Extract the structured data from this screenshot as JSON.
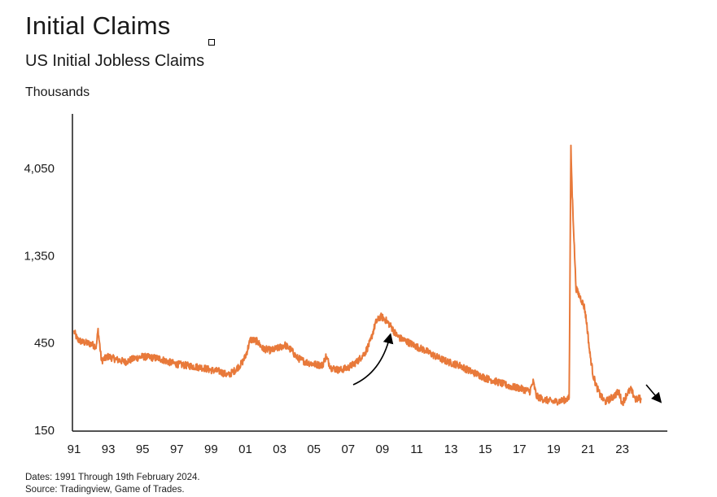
{
  "header": {
    "title": "Initial Claims",
    "subtitle": "US Initial Jobless Claims",
    "unit_label": "Thousands"
  },
  "footer": {
    "dates_note": "Dates: 1991 Through 19th February 2024.",
    "source_note": "Source: Tradingview, Game of Trades."
  },
  "colors": {
    "series": "#E8793A",
    "axis": "#1a1a1a",
    "arrows": "#000000"
  },
  "chart_data": {
    "type": "line",
    "title": "Initial Claims",
    "subtitle": "US Initial Jobless Claims",
    "ylabel": "Thousands",
    "xlabel": "",
    "y_scale": "log",
    "ylim": [
      150,
      6000
    ],
    "xlim": [
      1991.0,
      2024.6
    ],
    "y_ticks": [
      150,
      450,
      1350,
      4050
    ],
    "y_tick_labels": [
      "150",
      "450",
      "1,350",
      "4,050"
    ],
    "x_ticks": [
      1991,
      1993,
      1995,
      1997,
      1999,
      2001,
      2003,
      2005,
      2007,
      2009,
      2011,
      2013,
      2015,
      2017,
      2019,
      2021,
      2023
    ],
    "x_tick_labels": [
      "91",
      "93",
      "95",
      "97",
      "99",
      "01",
      "03",
      "05",
      "07",
      "09",
      "11",
      "13",
      "15",
      "17",
      "19",
      "21",
      "23"
    ],
    "grid": false,
    "legend": "none",
    "series": [
      {
        "x": [
          1991.0,
          1991.2,
          1991.5,
          1992.0,
          1992.3,
          1992.4,
          1992.6,
          1993.0,
          1993.5,
          1994.0,
          1994.5,
          1995.0,
          1995.5,
          1996.0,
          1996.5,
          1997.0,
          1997.5,
          1998.0,
          1998.5,
          1999.0,
          1999.5,
          2000.0,
          2000.4,
          2000.8,
          2001.0,
          2001.3,
          2001.7,
          2002.0,
          2002.5,
          2003.0,
          2003.3,
          2003.7,
          2004.0,
          2004.5,
          2005.0,
          2005.5,
          2005.7,
          2006.0,
          2006.5,
          2007.0,
          2007.5,
          2008.0,
          2008.3,
          2008.6,
          2008.9,
          2009.2,
          2009.5,
          2009.8,
          2010.0,
          2010.5,
          2011.0,
          2011.5,
          2012.0,
          2012.5,
          2013.0,
          2013.5,
          2014.0,
          2014.5,
          2015.0,
          2015.5,
          2016.0,
          2016.5,
          2017.0,
          2017.6,
          2017.8,
          2018.0,
          2018.5,
          2019.0,
          2019.5,
          2019.9,
          2020.0,
          2020.08,
          2020.15,
          2020.22,
          2020.3,
          2020.4,
          2020.6,
          2020.8,
          2020.95,
          2021.1,
          2021.3,
          2021.5,
          2021.7,
          2021.9,
          2022.0,
          2022.2,
          2022.5,
          2022.8,
          2023.0,
          2023.3,
          2023.5,
          2023.8,
          2024.0,
          2024.1
        ],
        "y": [
          520,
          470,
          455,
          445,
          430,
          530,
          360,
          380,
          365,
          355,
          370,
          380,
          375,
          370,
          355,
          345,
          340,
          335,
          330,
          320,
          315,
          300,
          320,
          350,
          380,
          470,
          460,
          420,
          410,
          425,
          440,
          410,
          375,
          355,
          345,
          340,
          380,
          330,
          320,
          330,
          355,
          400,
          460,
          580,
          630,
          600,
          555,
          500,
          480,
          455,
          430,
          410,
          385,
          365,
          350,
          340,
          320,
          305,
          290,
          280,
          270,
          260,
          255,
          245,
          275,
          230,
          220,
          215,
          218,
          225,
          5200,
          2900,
          2000,
          1350,
          900,
          850,
          780,
          700,
          550,
          400,
          300,
          260,
          235,
          220,
          215,
          220,
          230,
          245,
          210,
          240,
          250,
          220,
          225,
          220
        ]
      }
    ]
  }
}
